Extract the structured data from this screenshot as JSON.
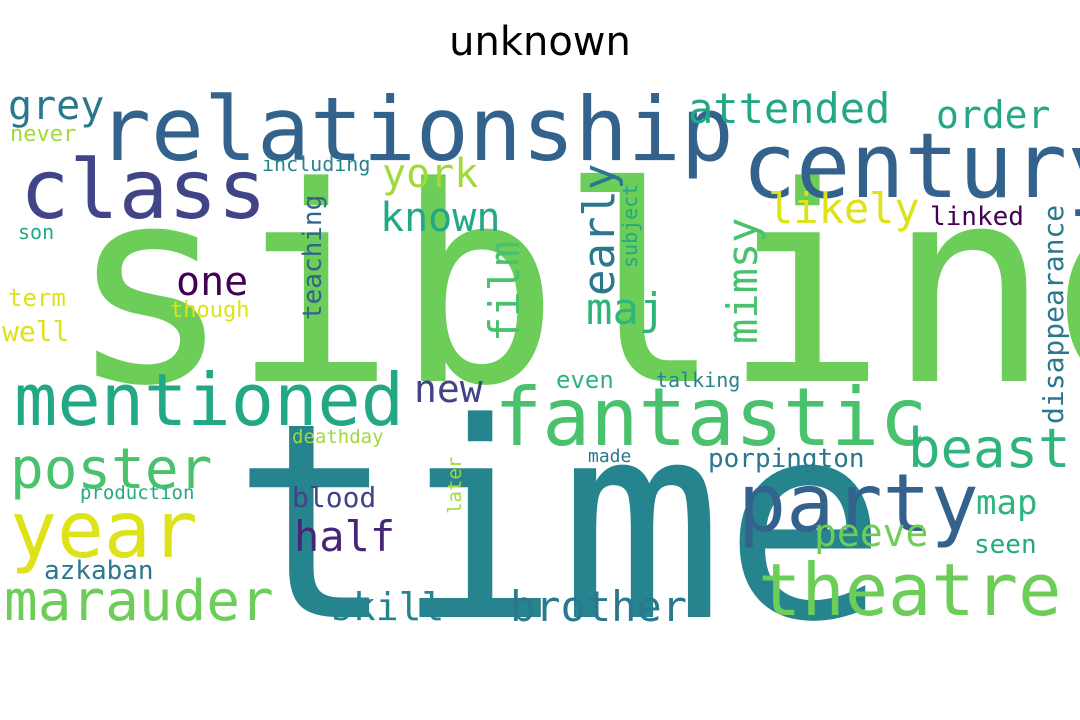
{
  "title": "unknown",
  "palette": {
    "bright_green": "#6ccd59",
    "green": "#4ac16d",
    "teal_green": "#22a884",
    "teal": "#25848e",
    "blue": "#2a788e",
    "steel_blue": "#33638d",
    "indigo": "#414487",
    "purple": "#482677",
    "dark_purple": "#440154",
    "lime": "#a0da39",
    "yellow": "#dde318",
    "sea_green": "#2fb47c"
  },
  "words": [
    {
      "id": "sibling",
      "text": "sibling",
      "color": "#6ccd59"
    },
    {
      "id": "time",
      "text": "time",
      "color": "#25848e"
    },
    {
      "id": "relationship",
      "text": "relationship",
      "color": "#33638d"
    },
    {
      "id": "century",
      "text": "century",
      "color": "#33638d"
    },
    {
      "id": "class",
      "text": "class",
      "color": "#414487"
    },
    {
      "id": "fantastic",
      "text": "fantastic",
      "color": "#4ac16d"
    },
    {
      "id": "mentioned",
      "text": "mentioned",
      "color": "#22a884"
    },
    {
      "id": "party",
      "text": "party",
      "color": "#33638d"
    },
    {
      "id": "theatre",
      "text": "theatre",
      "color": "#6ccd59"
    },
    {
      "id": "year",
      "text": "year",
      "color": "#dde318"
    },
    {
      "id": "marauder",
      "text": "marauder",
      "color": "#6ccd59"
    },
    {
      "id": "poster",
      "text": "poster",
      "color": "#4ac16d"
    },
    {
      "id": "beast",
      "text": "beast",
      "color": "#2fb47c"
    },
    {
      "id": "brother",
      "text": "brother",
      "color": "#2a788e"
    },
    {
      "id": "attended",
      "text": "attended",
      "color": "#22a884"
    },
    {
      "id": "grey",
      "text": "grey",
      "color": "#2a788e"
    },
    {
      "id": "order",
      "text": "order",
      "color": "#22a884"
    },
    {
      "id": "york",
      "text": "york",
      "color": "#a0da39"
    },
    {
      "id": "known",
      "text": "known",
      "color": "#22a884"
    },
    {
      "id": "likely",
      "text": "likely",
      "color": "#dde318"
    },
    {
      "id": "early",
      "text": "early",
      "color": "#2a788e"
    },
    {
      "id": "film",
      "text": "film",
      "color": "#4ac16d"
    },
    {
      "id": "mimsy",
      "text": "mimsy",
      "color": "#4ac16d"
    },
    {
      "id": "maj",
      "text": "maj",
      "color": "#2fb47c"
    },
    {
      "id": "one",
      "text": "one",
      "color": "#440154"
    },
    {
      "id": "new",
      "text": "new",
      "color": "#414487"
    },
    {
      "id": "half",
      "text": "half",
      "color": "#482677"
    },
    {
      "id": "skill",
      "text": "skill",
      "color": "#25848e"
    },
    {
      "id": "map",
      "text": "map",
      "color": "#2fb47c"
    },
    {
      "id": "peeve",
      "text": "peeve",
      "color": "#6ccd59"
    },
    {
      "id": "blood",
      "text": "blood",
      "color": "#414487"
    },
    {
      "id": "linked",
      "text": "linked",
      "color": "#440154"
    },
    {
      "id": "disappearance",
      "text": "disappearance",
      "color": "#2a788e"
    },
    {
      "id": "porpington",
      "text": "porpington",
      "color": "#2a788e"
    },
    {
      "id": "azkaban",
      "text": "azkaban",
      "color": "#2a788e"
    },
    {
      "id": "seen",
      "text": "seen",
      "color": "#22a884"
    },
    {
      "id": "teaching",
      "text": "teaching",
      "color": "#33638d"
    },
    {
      "id": "including",
      "text": "including",
      "color": "#25848e"
    },
    {
      "id": "subject",
      "text": "subject",
      "color": "#22a884"
    },
    {
      "id": "never",
      "text": "never",
      "color": "#a0da39"
    },
    {
      "id": "son",
      "text": "son",
      "color": "#22a884"
    },
    {
      "id": "term",
      "text": "term",
      "color": "#dde318"
    },
    {
      "id": "well",
      "text": "well",
      "color": "#dde318"
    },
    {
      "id": "though",
      "text": "though",
      "color": "#dde318"
    },
    {
      "id": "even",
      "text": "even",
      "color": "#2fb47c"
    },
    {
      "id": "talking",
      "text": "talking",
      "color": "#25848e"
    },
    {
      "id": "deathday",
      "text": "deathday",
      "color": "#a0da39"
    },
    {
      "id": "made",
      "text": "made",
      "color": "#2a788e"
    },
    {
      "id": "later",
      "text": "later",
      "color": "#a0da39"
    },
    {
      "id": "production",
      "text": "production",
      "color": "#22a884"
    }
  ]
}
